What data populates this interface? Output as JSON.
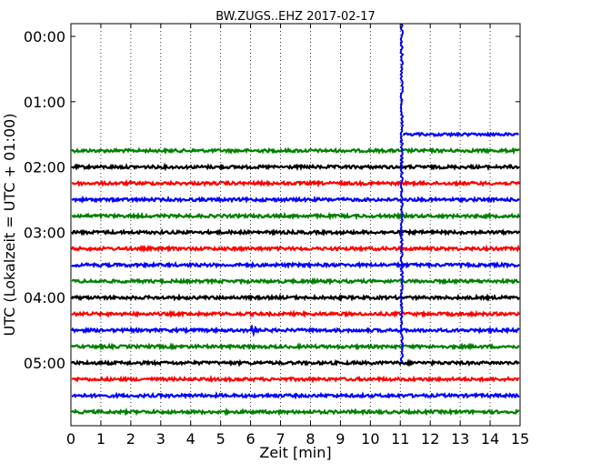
{
  "chart_data": {
    "type": "line",
    "title": "BW.ZUGS..EHZ 2017-02-17",
    "xlabel": "Zeit  [min]",
    "ylabel": "UTC (Lokalzeit = UTC + 01:00)",
    "xlim": [
      0,
      15
    ],
    "x_ticks": [
      "0",
      "1",
      "2",
      "3",
      "4",
      "5",
      "6",
      "7",
      "8",
      "9",
      "10",
      "11",
      "12",
      "13",
      "14",
      "15"
    ],
    "y_ticks": [
      "00:00",
      "01:00",
      "02:00",
      "03:00",
      "04:00",
      "05:00"
    ],
    "grid": "vertical dotted",
    "series_colors": [
      "#008000",
      "#000000",
      "#ff0000",
      "#0000ff"
    ],
    "rows": [
      {
        "label": "01:45",
        "color": "#008000"
      },
      {
        "label": "02:00",
        "color": "#000000"
      },
      {
        "label": "02:15",
        "color": "#ff0000"
      },
      {
        "label": "02:30",
        "color": "#0000ff"
      },
      {
        "label": "02:45",
        "color": "#008000"
      },
      {
        "label": "03:00",
        "color": "#000000"
      },
      {
        "label": "03:15",
        "color": "#ff0000"
      },
      {
        "label": "03:30",
        "color": "#0000ff"
      },
      {
        "label": "03:45",
        "color": "#008000"
      },
      {
        "label": "04:00",
        "color": "#000000"
      },
      {
        "label": "04:15",
        "color": "#ff0000"
      },
      {
        "label": "04:30",
        "color": "#0000ff"
      },
      {
        "label": "04:45",
        "color": "#008000"
      },
      {
        "label": "05:00",
        "color": "#000000"
      },
      {
        "label": "05:15",
        "color": "#ff0000"
      },
      {
        "label": "05:30",
        "color": "#0000ff"
      },
      {
        "label": "05:45",
        "color": "#008000"
      }
    ],
    "events": [
      {
        "type": "spike",
        "x_min": 11.05,
        "from_row": "00:00",
        "to_row": "05:00",
        "color": "#0000ff"
      },
      {
        "type": "trace",
        "row": "01:30",
        "x_start": 11.1,
        "x_end": 15,
        "color": "#0000ff"
      },
      {
        "type": "blip",
        "row": "04:30",
        "x_min": 6.1,
        "color": "#0000ff"
      }
    ]
  }
}
